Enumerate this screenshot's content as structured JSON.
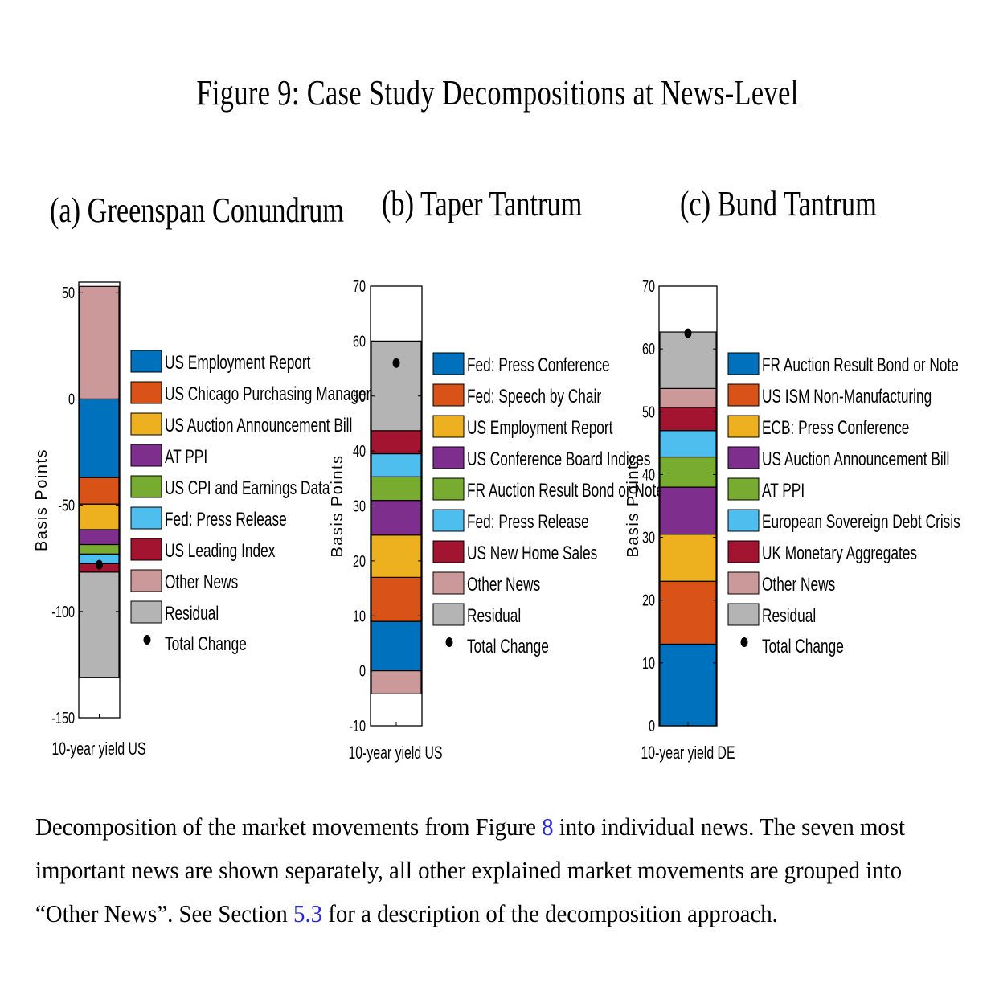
{
  "figure_title": "Figure 9: Case Study Decompositions at News-Level",
  "caption": {
    "part1": "Decomposition of the market movements from Figure ",
    "ref1": "8",
    "part2": " into individual news. The seven most important news are shown separately, all other explained market movements are grouped into “Other News”. See Section ",
    "ref2": "5.3",
    "part3": " for a description of the decomposition approach."
  },
  "colors": {
    "blue": "#0072bd",
    "orange": "#d95319",
    "yellow": "#edb120",
    "purple": "#7e2f8e",
    "green": "#77ac30",
    "lightblue": "#4dbeee",
    "red": "#a2142f",
    "pink": "#cc999a",
    "gray": "#b4b4b4"
  },
  "chart_data": [
    {
      "type": "stacked-bar",
      "title": "(a) Greenspan Conundrum",
      "ylabel": "Basis Points",
      "xlabel": "10-year yield US",
      "ylim": [
        -150,
        55
      ],
      "yticks": [
        -150,
        -100,
        -50,
        0,
        50
      ],
      "total_change": -78,
      "series": [
        {
          "name": "US Employment Report",
          "color": "blue",
          "value": -37
        },
        {
          "name": "US Chicago Purchasing Manager",
          "color": "orange",
          "value": -12.5
        },
        {
          "name": "US Auction Announcement Bill",
          "color": "yellow",
          "value": -12
        },
        {
          "name": "AT PPI",
          "color": "purple",
          "value": -7
        },
        {
          "name": "US CPI and Earnings Data",
          "color": "green",
          "value": -4.5
        },
        {
          "name": "Fed: Press Release",
          "color": "lightblue",
          "value": -4.5
        },
        {
          "name": "US Leading Index",
          "color": "red",
          "value": -4
        },
        {
          "name": "Other News",
          "color": "pink",
          "value": 53
        },
        {
          "name": "Residual",
          "color": "gray",
          "value": -49.5
        }
      ],
      "legend_extra": "Total Change"
    },
    {
      "type": "stacked-bar",
      "title": "(b) Taper Tantrum",
      "ylabel": "Basis Points",
      "xlabel": "10-year yield US",
      "ylim": [
        -10,
        70
      ],
      "yticks": [
        -10,
        0,
        10,
        20,
        30,
        40,
        50,
        60,
        70
      ],
      "total_change": 56,
      "series": [
        {
          "name": "Fed: Press Conference",
          "color": "blue",
          "value": 9
        },
        {
          "name": "Fed: Speech by Chair",
          "color": "orange",
          "value": 8
        },
        {
          "name": "US Employment Report",
          "color": "yellow",
          "value": 7.7
        },
        {
          "name": "US Conference Board Indices",
          "color": "purple",
          "value": 6.3
        },
        {
          "name": "FR Auction Result Bond or Note",
          "color": "green",
          "value": 4.3
        },
        {
          "name": "Fed: Press Release",
          "color": "lightblue",
          "value": 4.2
        },
        {
          "name": "US New Home Sales",
          "color": "red",
          "value": 4.2
        },
        {
          "name": "Other News",
          "color": "pink",
          "value": -4.2
        },
        {
          "name": "Residual",
          "color": "gray",
          "value": 16.3
        }
      ],
      "legend_extra": "Total Change"
    },
    {
      "type": "stacked-bar",
      "title": "(c) Bund Tantrum",
      "ylabel": "Basis Points",
      "xlabel": "10-year yield DE",
      "ylim": [
        0,
        70
      ],
      "yticks": [
        0,
        10,
        20,
        30,
        40,
        50,
        60,
        70
      ],
      "total_change": 62.5,
      "series": [
        {
          "name": "FR Auction Result Bond or Note",
          "color": "blue",
          "value": 13
        },
        {
          "name": "US ISM Non-Manufacturing",
          "color": "orange",
          "value": 10
        },
        {
          "name": "ECB: Press Conference",
          "color": "yellow",
          "value": 7.5
        },
        {
          "name": "US Auction Announcement Bill",
          "color": "purple",
          "value": 7.5
        },
        {
          "name": "AT PPI",
          "color": "green",
          "value": 4.8
        },
        {
          "name": "European Sovereign Debt Crisis",
          "color": "lightblue",
          "value": 4.2
        },
        {
          "name": "UK Monetary Aggregates",
          "color": "red",
          "value": 3.7
        },
        {
          "name": "Other News",
          "color": "pink",
          "value": 3
        },
        {
          "name": "Residual",
          "color": "gray",
          "value": 9
        }
      ],
      "legend_extra": "Total Change"
    }
  ]
}
